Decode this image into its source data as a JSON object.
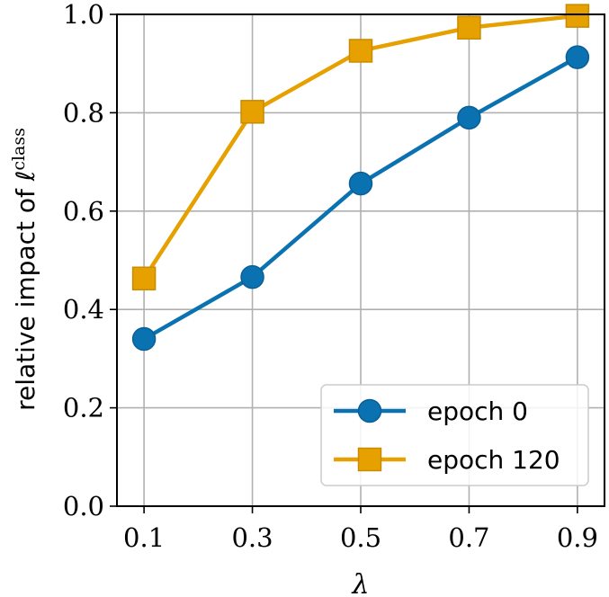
{
  "chart_data": {
    "type": "line",
    "title": "",
    "xlabel": "λ",
    "ylabel": "relative impact of ℓ",
    "ylabel_superscript": "class",
    "x": [
      0.1,
      0.3,
      0.5,
      0.7,
      0.9
    ],
    "x_tick_labels": [
      "0.1",
      "0.3",
      "0.5",
      "0.7",
      "0.9"
    ],
    "y_ticks": [
      0.0,
      0.2,
      0.4,
      0.6,
      0.8,
      1.0
    ],
    "y_tick_labels": [
      "0.0",
      "0.2",
      "0.4",
      "0.6",
      "0.8",
      "1.0"
    ],
    "xlim": [
      0.05,
      0.95
    ],
    "ylim": [
      0.0,
      1.0
    ],
    "grid": true,
    "legend_position": "lower-right",
    "series": [
      {
        "name": "epoch 0",
        "marker": "circle",
        "color": "#0a72b0",
        "values": [
          0.34,
          0.466,
          0.656,
          0.79,
          0.913
        ]
      },
      {
        "name": "epoch 120",
        "marker": "square",
        "color": "#e6a000",
        "values": [
          0.463,
          0.802,
          0.926,
          0.973,
          0.997
        ]
      }
    ]
  }
}
